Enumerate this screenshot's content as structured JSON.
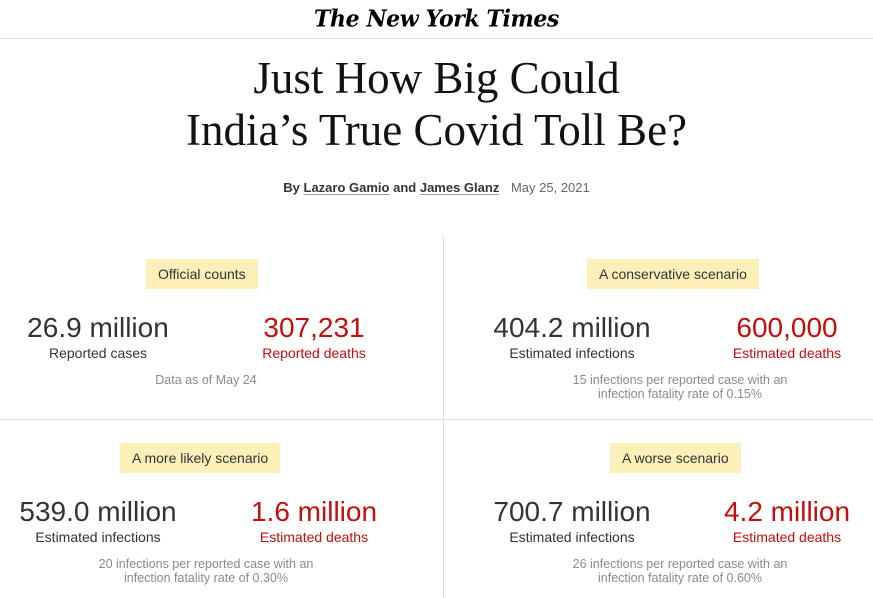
{
  "masthead": {
    "logo": "The New York Times"
  },
  "article": {
    "headline_line1": "Just How Big Could",
    "headline_line2": "India’s True Covid Toll Be?",
    "byline_prefix": "By",
    "author1": "Lazaro Gamio",
    "byline_and": "and",
    "author2": "James Glanz",
    "date": "May 25, 2021"
  },
  "panels": {
    "official": {
      "tag": "Official counts",
      "left_value": "26.9 million",
      "left_label": "Reported cases",
      "right_value": "307,231",
      "right_label": "Reported deaths",
      "note1": "Data as of May 24",
      "note2": ""
    },
    "conservative": {
      "tag": "A conservative scenario",
      "left_value": "404.2 million",
      "left_label": "Estimated infections",
      "right_value": "600,000",
      "right_label": "Estimated deaths",
      "note1": "15 infections per reported case with an",
      "note2": "infection fatality rate of 0.15%"
    },
    "likely": {
      "tag": "A more likely scenario",
      "left_value": "539.0 million",
      "left_label": "Estimated infections",
      "right_value": "1.6 million",
      "right_label": "Estimated deaths",
      "note1": "20 infections per reported case with an",
      "note2": "infection fatality rate of 0.30%"
    },
    "worse": {
      "tag": "A worse scenario",
      "left_value": "700.7 million",
      "left_label": "Estimated infections",
      "right_value": "4.2 million",
      "right_label": "Estimated deaths",
      "note1": "26 infections per reported case with an",
      "note2": "infection fatality rate of 0.60%"
    }
  },
  "colors": {
    "tag_bg": "#fcf0b8",
    "deaths_red": "#c40e0e",
    "divider": "#dcdcdc"
  }
}
